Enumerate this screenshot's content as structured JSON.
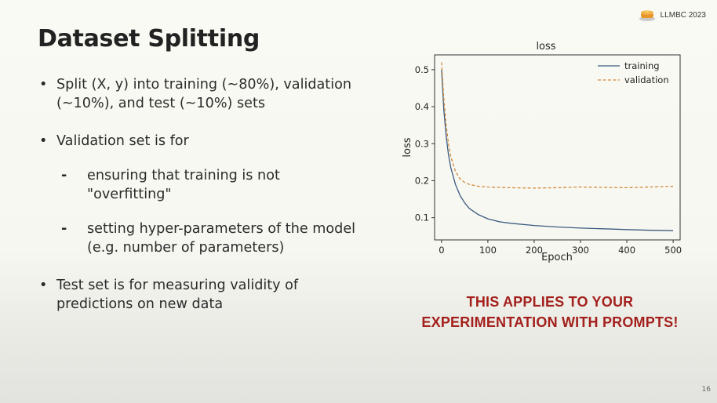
{
  "header": {
    "badge_label": "LLMBC 2023"
  },
  "slide": {
    "title": "Dataset Splitting",
    "bullets": [
      "Split (X, y) into training (~80%), validation (~10%), and test (~10%) sets",
      "Validation set is for"
    ],
    "sub_bullets": [
      "ensuring that training is not \"overfitting\"",
      "setting hyper-parameters of the model (e.g. number of parameters)"
    ],
    "bullet_last": "Test set is for measuring validity of predictions on new data",
    "callout": "THIS APPLIES TO YOUR EXPERIMENTATION WITH PROMPTS!",
    "page_number": "16"
  },
  "chart_data": {
    "type": "line",
    "title": "loss",
    "xlabel": "Epoch",
    "ylabel": "loss",
    "xlim": [
      -15,
      515
    ],
    "ylim": [
      0.04,
      0.54
    ],
    "xticks": [
      0,
      100,
      200,
      300,
      400,
      500
    ],
    "yticks": [
      0.1,
      0.2,
      0.3,
      0.4,
      0.5
    ],
    "grid": false,
    "legend_position": "top-right",
    "series": [
      {
        "name": "training",
        "color": "#3b5b7f",
        "style": "solid",
        "x": [
          0,
          5,
          10,
          15,
          20,
          30,
          40,
          50,
          60,
          80,
          100,
          125,
          150,
          200,
          250,
          300,
          350,
          400,
          450,
          500
        ],
        "y": [
          0.5,
          0.39,
          0.32,
          0.27,
          0.235,
          0.19,
          0.16,
          0.14,
          0.125,
          0.108,
          0.097,
          0.089,
          0.085,
          0.079,
          0.075,
          0.072,
          0.07,
          0.068,
          0.066,
          0.065
        ]
      },
      {
        "name": "validation",
        "color": "#d08c3f",
        "style": "dashed",
        "x": [
          0,
          5,
          10,
          15,
          20,
          30,
          40,
          50,
          60,
          80,
          100,
          125,
          150,
          200,
          250,
          300,
          350,
          400,
          450,
          500
        ],
        "y": [
          0.52,
          0.42,
          0.35,
          0.3,
          0.265,
          0.225,
          0.205,
          0.195,
          0.19,
          0.185,
          0.183,
          0.182,
          0.181,
          0.18,
          0.181,
          0.183,
          0.182,
          0.181,
          0.183,
          0.185
        ]
      }
    ]
  }
}
